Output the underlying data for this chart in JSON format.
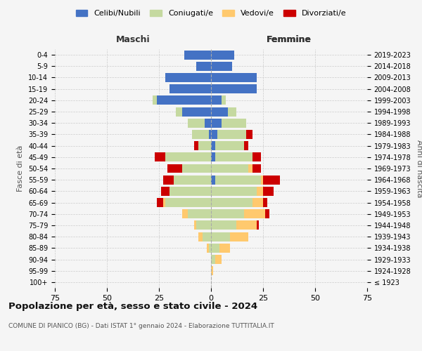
{
  "age_groups": [
    "100+",
    "95-99",
    "90-94",
    "85-89",
    "80-84",
    "75-79",
    "70-74",
    "65-69",
    "60-64",
    "55-59",
    "50-54",
    "45-49",
    "40-44",
    "35-39",
    "30-34",
    "25-29",
    "20-24",
    "15-19",
    "10-14",
    "5-9",
    "0-4"
  ],
  "birth_years": [
    "≤ 1923",
    "1924-1928",
    "1929-1933",
    "1934-1938",
    "1939-1943",
    "1944-1948",
    "1949-1953",
    "1954-1958",
    "1959-1963",
    "1964-1968",
    "1969-1973",
    "1974-1978",
    "1979-1983",
    "1984-1988",
    "1989-1993",
    "1994-1998",
    "1999-2003",
    "2004-2008",
    "2009-2013",
    "2014-2018",
    "2019-2023"
  ],
  "maschi": {
    "celibi": [
      0,
      0,
      0,
      0,
      0,
      0,
      0,
      0,
      0,
      0,
      0,
      0,
      0,
      1,
      3,
      14,
      26,
      20,
      22,
      7,
      13
    ],
    "coniugati": [
      0,
      0,
      0,
      1,
      4,
      7,
      11,
      22,
      20,
      18,
      14,
      22,
      6,
      8,
      8,
      3,
      2,
      0,
      0,
      0,
      0
    ],
    "vedovi": [
      0,
      0,
      0,
      1,
      2,
      1,
      3,
      1,
      0,
      0,
      0,
      0,
      0,
      0,
      0,
      0,
      0,
      0,
      0,
      0,
      0
    ],
    "divorziati": [
      0,
      0,
      0,
      0,
      0,
      0,
      0,
      3,
      4,
      5,
      7,
      5,
      2,
      0,
      0,
      0,
      0,
      0,
      0,
      0,
      0
    ]
  },
  "femmine": {
    "nubili": [
      0,
      0,
      0,
      0,
      0,
      0,
      0,
      0,
      0,
      2,
      0,
      2,
      2,
      3,
      5,
      8,
      5,
      22,
      22,
      10,
      11
    ],
    "coniugate": [
      0,
      0,
      2,
      4,
      9,
      12,
      16,
      20,
      22,
      22,
      18,
      18,
      14,
      14,
      12,
      4,
      2,
      0,
      0,
      0,
      0
    ],
    "vedove": [
      0,
      1,
      3,
      5,
      9,
      10,
      10,
      5,
      3,
      1,
      2,
      0,
      0,
      0,
      0,
      0,
      0,
      0,
      0,
      0,
      0
    ],
    "divorziate": [
      0,
      0,
      0,
      0,
      0,
      1,
      2,
      2,
      5,
      8,
      4,
      4,
      2,
      3,
      0,
      0,
      0,
      0,
      0,
      0,
      0
    ]
  },
  "colors": {
    "celibi": "#4472c4",
    "coniugati": "#c5d9a0",
    "vedovi": "#ffc96e",
    "divorziati": "#cc0000"
  },
  "xlim": 75,
  "title": "Popolazione per età, sesso e stato civile - 2024",
  "subtitle": "COMUNE DI PIANICO (BG) - Dati ISTAT 1° gennaio 2024 - Elaborazione TUTTITALIA.IT",
  "legend_labels": [
    "Celibi/Nubili",
    "Coniugati/e",
    "Vedovi/e",
    "Divorziati/e"
  ],
  "xlabel_left": "Maschi",
  "xlabel_right": "Femmine",
  "ylabel_left": "Fasce di età",
  "ylabel_right": "Anni di nascita",
  "background_color": "#f5f5f5"
}
